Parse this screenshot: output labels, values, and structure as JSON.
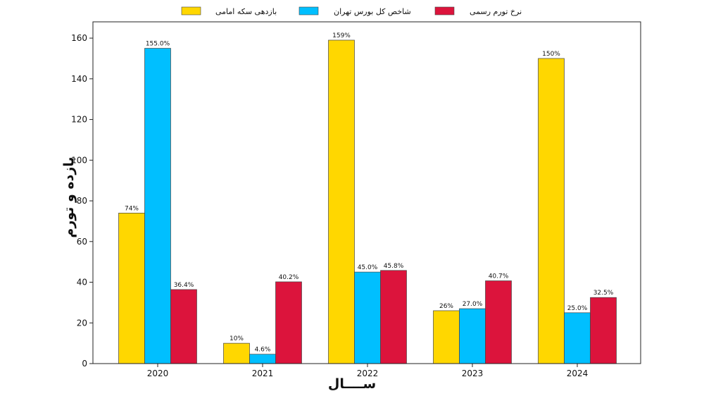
{
  "chart_data": {
    "type": "bar",
    "categories": [
      "2020",
      "2021",
      "2022",
      "2023",
      "2024"
    ],
    "series": [
      {
        "name": "بازدهی سکه امامی",
        "color": "#FFD700",
        "values": [
          74,
          10,
          159,
          26,
          150
        ],
        "labels": [
          "74%",
          "10%",
          "159%",
          "26%",
          "150%"
        ]
      },
      {
        "name": "شاخص کل بورس تهران",
        "color": "#00BFFF",
        "values": [
          155.0,
          4.6,
          45.0,
          27.0,
          25.0
        ],
        "labels": [
          "155.0%",
          "4.6%",
          "45.0%",
          "27.0%",
          "25.0%"
        ]
      },
      {
        "name": "نرخ تورم رسمی",
        "color": "#DC143C",
        "values": [
          36.4,
          40.2,
          45.8,
          40.7,
          32.5
        ],
        "labels": [
          "36.4%",
          "40.2%",
          "45.8%",
          "40.7%",
          "32.5%"
        ]
      }
    ],
    "xlabel": "ســــال",
    "ylabel": "بازده و تورم",
    "ylim": [
      0,
      168
    ],
    "yticks": [
      0,
      20,
      40,
      60,
      80,
      100,
      120,
      140,
      160
    ],
    "legend_position": "top"
  }
}
